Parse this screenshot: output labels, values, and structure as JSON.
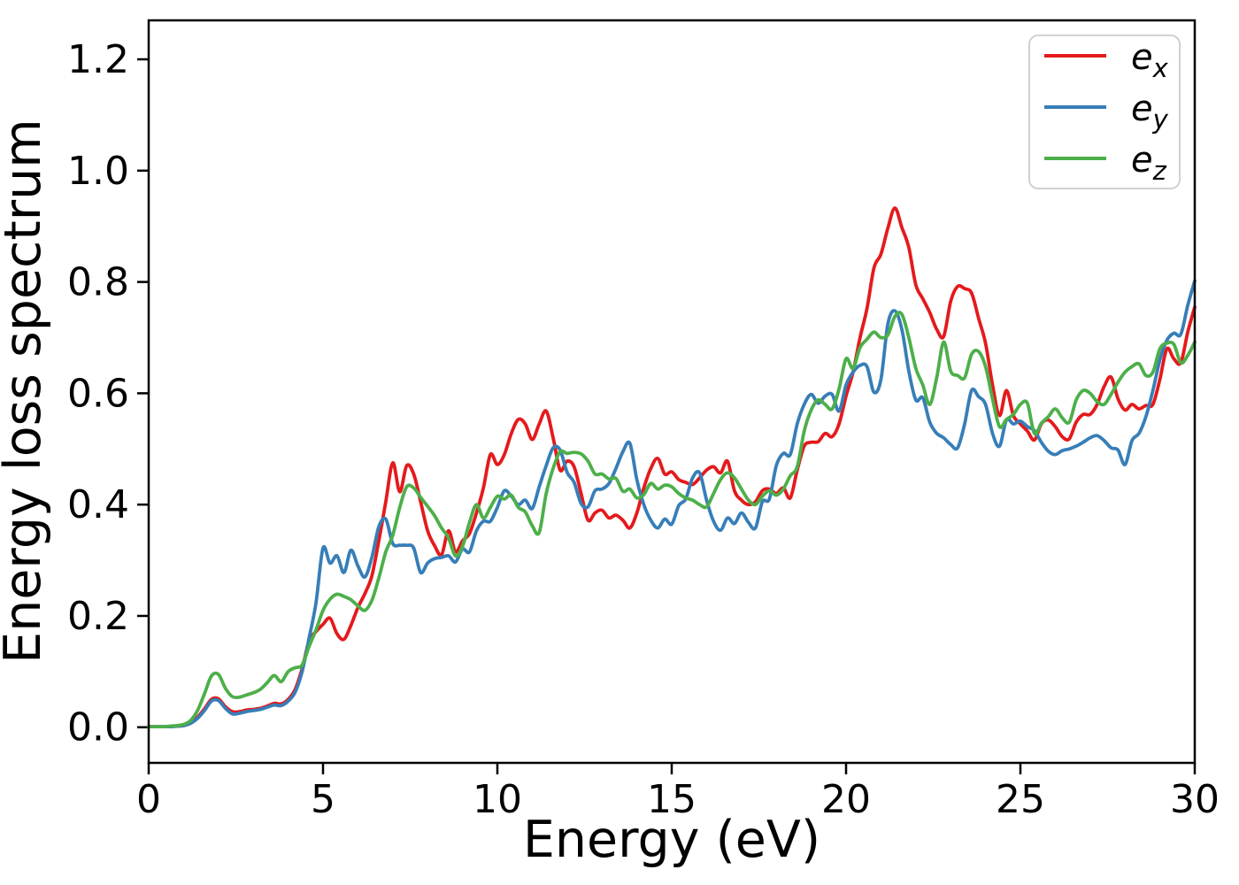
{
  "figure": {
    "background": "#ffffff"
  },
  "chart_data": {
    "type": "line",
    "title": "",
    "xlabel": "Energy (eV)",
    "ylabel": "Energy loss spectrum",
    "xlim": [
      0,
      30
    ],
    "ylim": [
      -0.064,
      1.27
    ],
    "grid": false,
    "legend_position": "upper right",
    "x_ticks": [
      {
        "value": 0,
        "label": "0"
      },
      {
        "value": 5,
        "label": "5"
      },
      {
        "value": 10,
        "label": "10"
      },
      {
        "value": 15,
        "label": "15"
      },
      {
        "value": 20,
        "label": "20"
      },
      {
        "value": 25,
        "label": "25"
      },
      {
        "value": 30,
        "label": "30"
      }
    ],
    "y_ticks": [
      {
        "value": 0.0,
        "label": "0.0"
      },
      {
        "value": 0.2,
        "label": "0.2"
      },
      {
        "value": 0.4,
        "label": "0.4"
      },
      {
        "value": 0.6,
        "label": "0.6"
      },
      {
        "value": 0.8,
        "label": "0.8"
      },
      {
        "value": 1.0,
        "label": "1.0"
      },
      {
        "value": 1.2,
        "label": "1.2"
      }
    ],
    "x_start": 0,
    "x_step": 0.2,
    "series": [
      {
        "name": "e_x",
        "label_base": "e",
        "label_sub": "x",
        "color": "#e41a1c",
        "values": [
          0.001,
          0.001,
          0.001,
          0.001,
          0.002,
          0.003,
          0.008,
          0.018,
          0.033,
          0.05,
          0.051,
          0.037,
          0.028,
          0.028,
          0.031,
          0.032,
          0.034,
          0.038,
          0.043,
          0.042,
          0.05,
          0.068,
          0.105,
          0.155,
          0.172,
          0.185,
          0.196,
          0.168,
          0.158,
          0.183,
          0.215,
          0.24,
          0.272,
          0.335,
          0.405,
          0.475,
          0.423,
          0.47,
          0.455,
          0.405,
          0.353,
          0.326,
          0.31,
          0.353,
          0.315,
          0.335,
          0.348,
          0.385,
          0.43,
          0.49,
          0.472,
          0.49,
          0.528,
          0.553,
          0.545,
          0.517,
          0.545,
          0.568,
          0.52,
          0.462,
          0.478,
          0.468,
          0.42,
          0.372,
          0.385,
          0.39,
          0.376,
          0.381,
          0.372,
          0.358,
          0.385,
          0.43,
          0.465,
          0.483,
          0.455,
          0.459,
          0.445,
          0.44,
          0.436,
          0.448,
          0.462,
          0.468,
          0.457,
          0.478,
          0.425,
          0.408,
          0.4,
          0.405,
          0.425,
          0.428,
          0.42,
          0.43,
          0.412,
          0.462,
          0.505,
          0.512,
          0.513,
          0.528,
          0.522,
          0.545,
          0.595,
          0.638,
          0.7,
          0.752,
          0.825,
          0.85,
          0.897,
          0.933,
          0.898,
          0.862,
          0.795,
          0.77,
          0.745,
          0.715,
          0.702,
          0.765,
          0.792,
          0.788,
          0.78,
          0.735,
          0.69,
          0.615,
          0.56,
          0.605,
          0.56,
          0.545,
          0.532,
          0.516,
          0.545,
          0.552,
          0.54,
          0.522,
          0.518,
          0.548,
          0.562,
          0.562,
          0.58,
          0.612,
          0.629,
          0.59,
          0.57,
          0.58,
          0.572,
          0.578,
          0.58,
          0.625,
          0.68,
          0.662,
          0.655,
          0.71,
          0.755
        ]
      },
      {
        "name": "e_y",
        "label_base": "e",
        "label_sub": "y",
        "color": "#377eb8",
        "values": [
          0.001,
          0.001,
          0.001,
          0.001,
          0.002,
          0.003,
          0.007,
          0.016,
          0.03,
          0.047,
          0.048,
          0.034,
          0.024,
          0.025,
          0.028,
          0.03,
          0.032,
          0.036,
          0.04,
          0.039,
          0.047,
          0.063,
          0.1,
          0.16,
          0.224,
          0.322,
          0.295,
          0.308,
          0.278,
          0.318,
          0.29,
          0.27,
          0.305,
          0.36,
          0.374,
          0.33,
          0.327,
          0.327,
          0.322,
          0.278,
          0.295,
          0.303,
          0.305,
          0.308,
          0.297,
          0.32,
          0.315,
          0.353,
          0.37,
          0.37,
          0.395,
          0.425,
          0.415,
          0.4,
          0.408,
          0.393,
          0.432,
          0.47,
          0.502,
          0.498,
          0.458,
          0.44,
          0.402,
          0.396,
          0.425,
          0.428,
          0.438,
          0.465,
          0.495,
          0.51,
          0.445,
          0.4,
          0.372,
          0.358,
          0.374,
          0.365,
          0.398,
          0.41,
          0.448,
          0.457,
          0.408,
          0.37,
          0.354,
          0.376,
          0.366,
          0.385,
          0.368,
          0.358,
          0.405,
          0.41,
          0.47,
          0.492,
          0.49,
          0.545,
          0.58,
          0.598,
          0.582,
          0.595,
          0.598,
          0.568,
          0.615,
          0.638,
          0.65,
          0.648,
          0.602,
          0.625,
          0.725,
          0.748,
          0.715,
          0.64,
          0.588,
          0.592,
          0.548,
          0.528,
          0.52,
          0.508,
          0.502,
          0.545,
          0.605,
          0.594,
          0.58,
          0.528,
          0.505,
          0.552,
          0.545,
          0.55,
          0.54,
          0.533,
          0.512,
          0.496,
          0.49,
          0.497,
          0.5,
          0.505,
          0.512,
          0.52,
          0.524,
          0.515,
          0.502,
          0.498,
          0.472,
          0.515,
          0.528,
          0.558,
          0.605,
          0.66,
          0.695,
          0.708,
          0.706,
          0.758,
          0.802
        ]
      },
      {
        "name": "e_z",
        "label_base": "e",
        "label_sub": "z",
        "color": "#4daf4a",
        "values": [
          0.001,
          0.001,
          0.001,
          0.002,
          0.003,
          0.005,
          0.012,
          0.03,
          0.06,
          0.092,
          0.095,
          0.07,
          0.055,
          0.054,
          0.058,
          0.062,
          0.068,
          0.08,
          0.093,
          0.082,
          0.1,
          0.107,
          0.112,
          0.145,
          0.175,
          0.21,
          0.23,
          0.239,
          0.235,
          0.229,
          0.218,
          0.21,
          0.228,
          0.268,
          0.315,
          0.345,
          0.395,
          0.432,
          0.43,
          0.413,
          0.397,
          0.38,
          0.358,
          0.34,
          0.308,
          0.325,
          0.368,
          0.4,
          0.376,
          0.395,
          0.415,
          0.41,
          0.417,
          0.395,
          0.387,
          0.362,
          0.35,
          0.42,
          0.465,
          0.495,
          0.492,
          0.494,
          0.491,
          0.478,
          0.455,
          0.455,
          0.446,
          0.447,
          0.424,
          0.428,
          0.412,
          0.418,
          0.438,
          0.428,
          0.435,
          0.432,
          0.42,
          0.412,
          0.408,
          0.4,
          0.396,
          0.42,
          0.445,
          0.457,
          0.448,
          0.428,
          0.408,
          0.4,
          0.415,
          0.425,
          0.417,
          0.428,
          0.452,
          0.468,
          0.532,
          0.57,
          0.588,
          0.58,
          0.572,
          0.608,
          0.662,
          0.645,
          0.682,
          0.697,
          0.71,
          0.7,
          0.705,
          0.738,
          0.742,
          0.7,
          0.645,
          0.615,
          0.58,
          0.628,
          0.692,
          0.64,
          0.632,
          0.628,
          0.67,
          0.675,
          0.648,
          0.59,
          0.54,
          0.553,
          0.562,
          0.58,
          0.582,
          0.528,
          0.546,
          0.558,
          0.572,
          0.556,
          0.548,
          0.588,
          0.605,
          0.6,
          0.585,
          0.58,
          0.598,
          0.62,
          0.638,
          0.648,
          0.653,
          0.632,
          0.638,
          0.68,
          0.69,
          0.688,
          0.655,
          0.668,
          0.692
        ]
      }
    ]
  }
}
